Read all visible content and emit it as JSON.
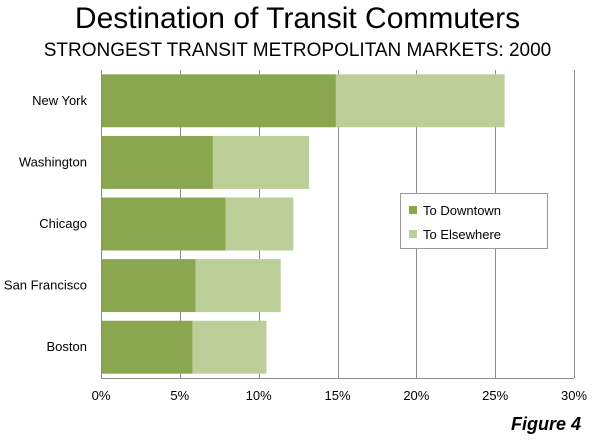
{
  "title": "Destination of Transit Commuters",
  "subtitle": "STRONGEST TRANSIT METROPOLITAN MARKETS: 2000",
  "figure_label": "Figure 4",
  "colors": {
    "to_downtown": "#8aa74f",
    "to_elsewhere": "#bccf98",
    "grid": "#8c8c8c",
    "axis": "#8c8c8c"
  },
  "chart_data": {
    "type": "bar",
    "orientation": "horizontal",
    "stacked": true,
    "categories": [
      "New York",
      "Washington",
      "Chicago",
      "San Francisco",
      "Boston"
    ],
    "series": [
      {
        "name": "To Downtown",
        "values": [
          14.9,
          7.1,
          7.9,
          6.0,
          5.8
        ]
      },
      {
        "name": "To Elsewhere",
        "values": [
          10.7,
          6.1,
          4.3,
          5.4,
          4.7
        ]
      }
    ],
    "xlim": [
      0,
      30
    ],
    "xticks": [
      0,
      5,
      10,
      15,
      20,
      25,
      30
    ],
    "tick_labels": [
      "0%",
      "5%",
      "10%",
      "15%",
      "20%",
      "25%",
      "30%"
    ],
    "grid": true,
    "legend_position": "right-middle"
  }
}
